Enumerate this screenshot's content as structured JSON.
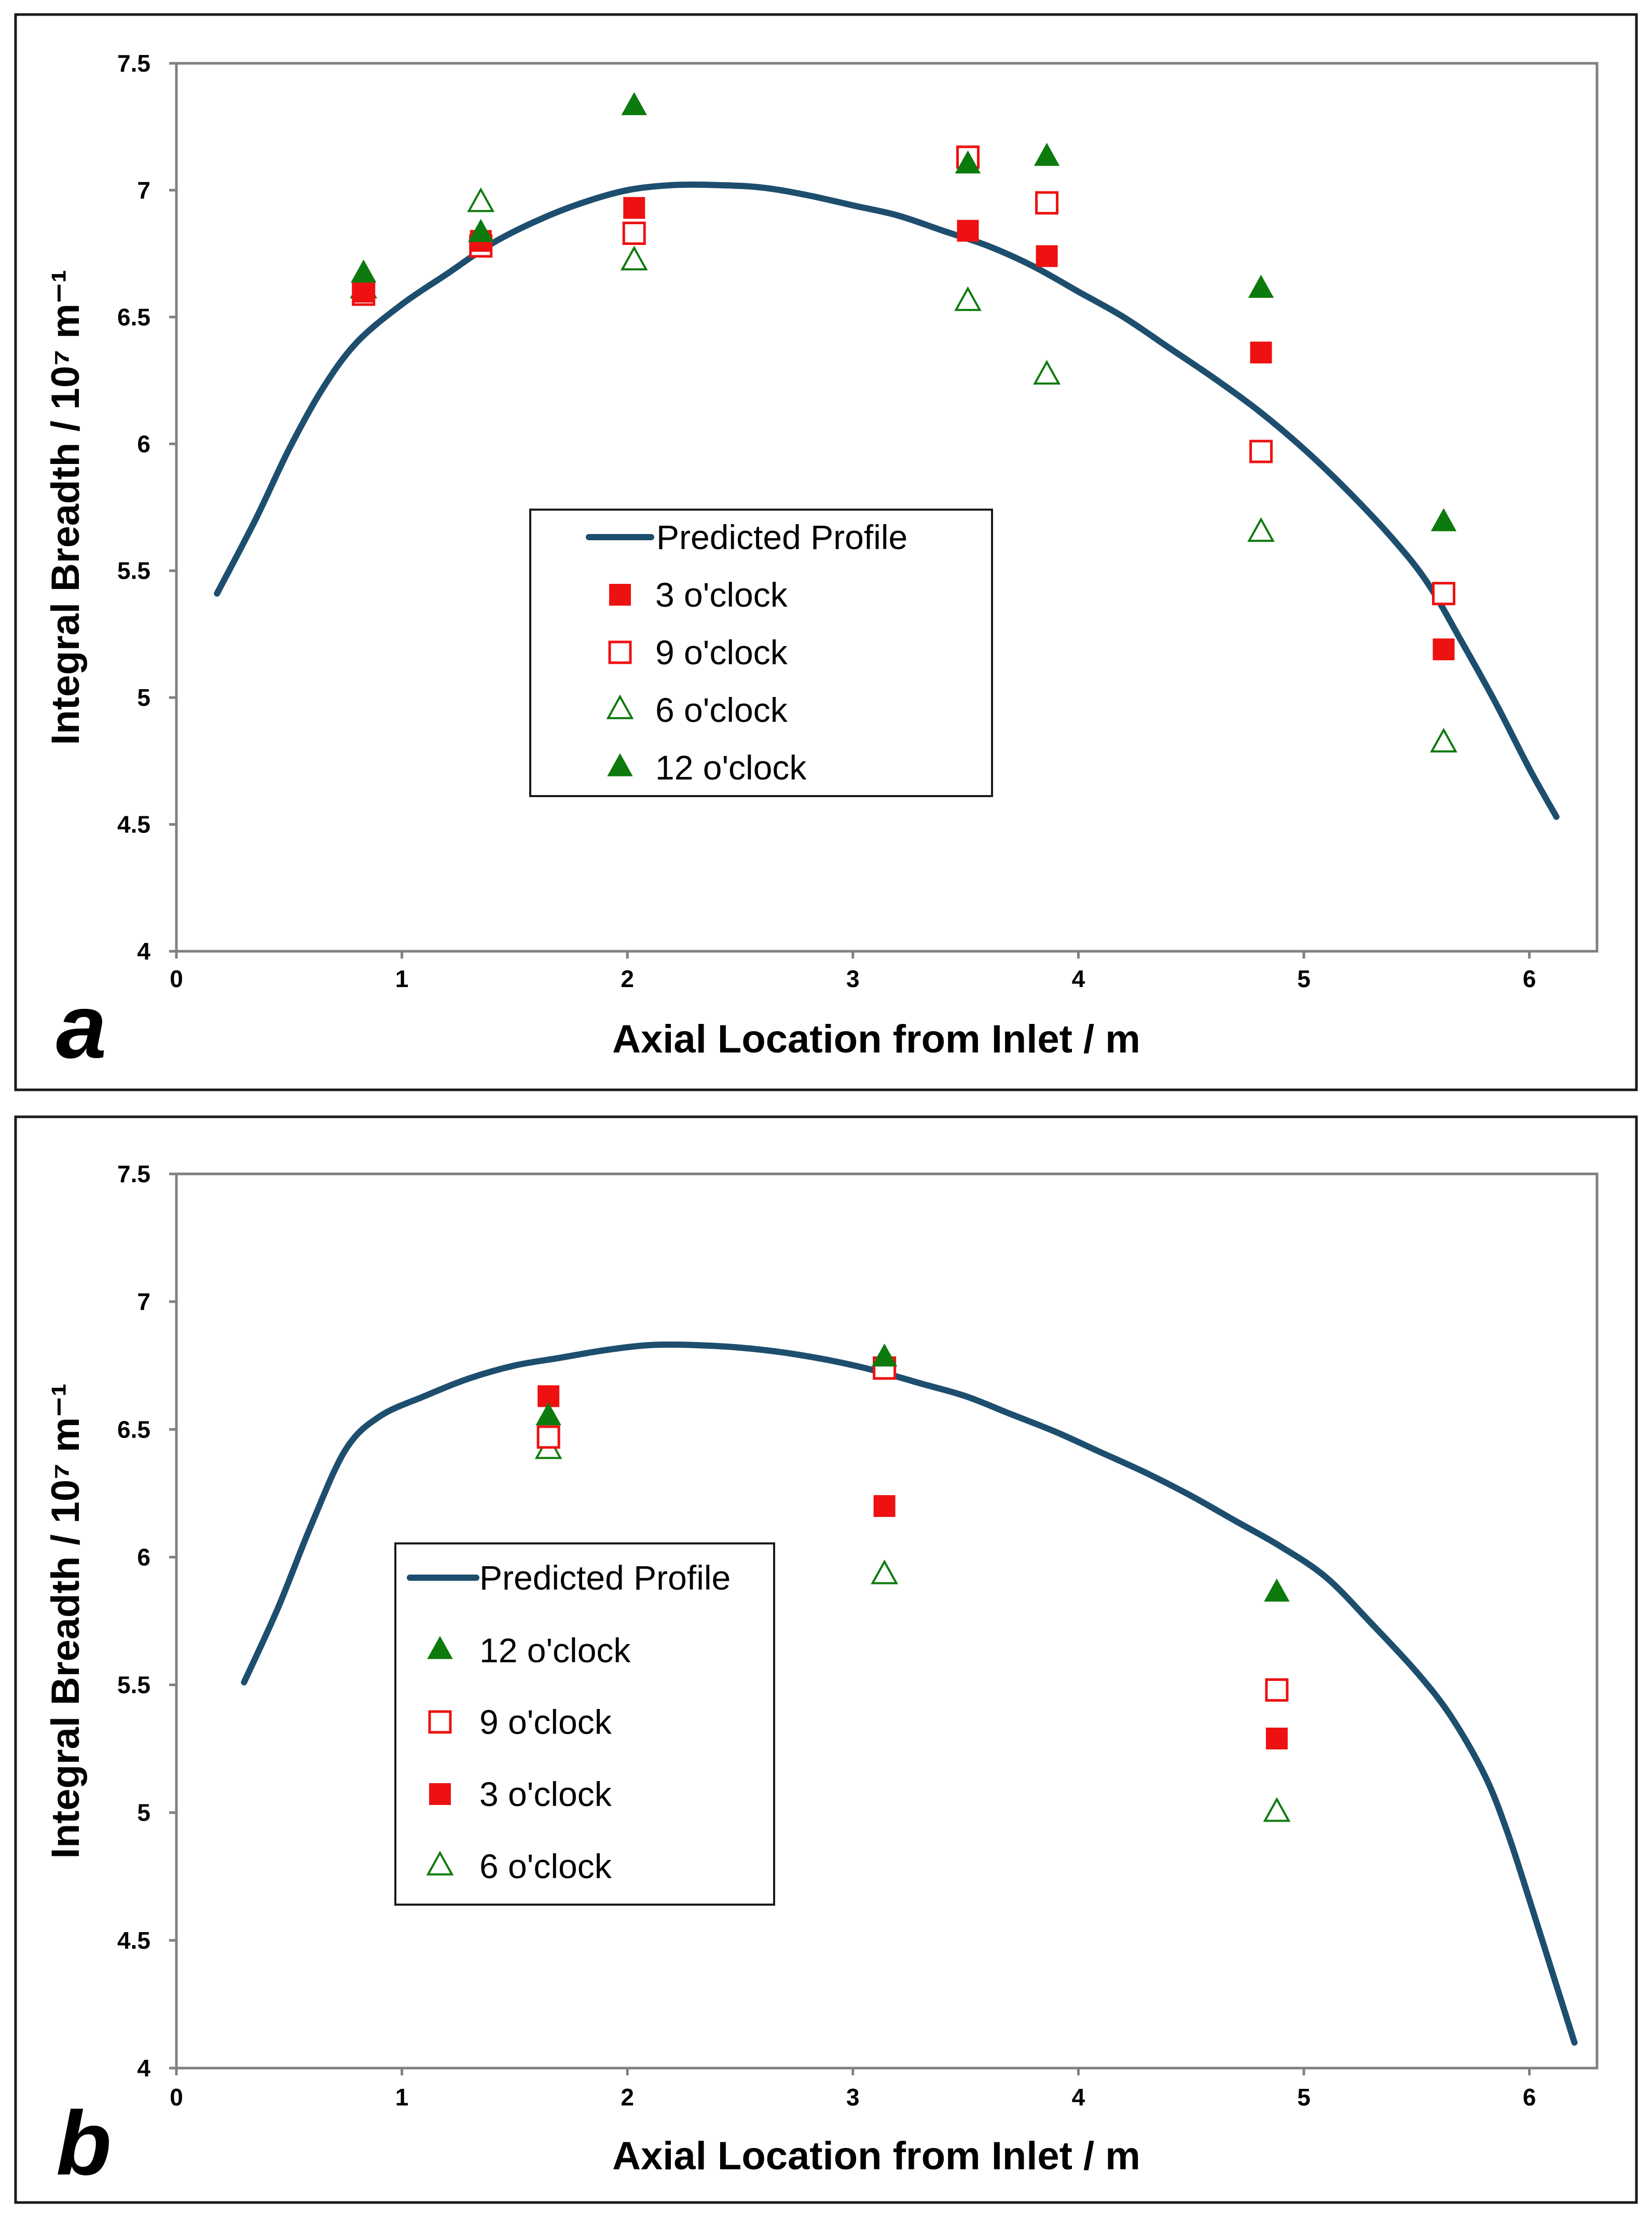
{
  "colors": {
    "curve": "#1d4e6e",
    "red": "#ee1111",
    "green": "#0d7a0d",
    "axis": "#808080",
    "frame": "#1a1a1a"
  },
  "chart_data": [
    {
      "type": "scatter",
      "panel_label": "a",
      "xlabel": "Axial Location from Inlet / m",
      "ylabel": "Integral Breadth / 10⁷ m⁻¹",
      "xlim": [
        0,
        6.3
      ],
      "ylim": [
        4,
        7.5
      ],
      "x_ticks": [
        "0",
        "1",
        "2",
        "3",
        "4",
        "5",
        "6"
      ],
      "y_ticks": [
        "4",
        "4.5",
        "5",
        "5.5",
        "6",
        "6.5",
        "7",
        "7.5"
      ],
      "grid": false,
      "legend_position": "center-left",
      "predicted_profile": {
        "name": "Predicted Profile",
        "x": [
          0.18,
          0.35,
          0.5,
          0.65,
          0.8,
          1.0,
          1.2,
          1.4,
          1.6,
          1.8,
          2.0,
          2.2,
          2.4,
          2.6,
          2.8,
          3.0,
          3.2,
          3.4,
          3.6,
          3.8,
          4.0,
          4.2,
          4.4,
          4.6,
          4.8,
          5.0,
          5.2,
          5.4,
          5.55,
          5.7,
          5.85,
          6.0,
          6.12
        ],
        "y": [
          5.41,
          5.7,
          5.98,
          6.22,
          6.4,
          6.55,
          6.67,
          6.79,
          6.88,
          6.95,
          7.0,
          7.02,
          7.02,
          7.01,
          6.98,
          6.94,
          6.9,
          6.84,
          6.78,
          6.7,
          6.6,
          6.5,
          6.38,
          6.26,
          6.13,
          5.98,
          5.81,
          5.62,
          5.45,
          5.22,
          4.98,
          4.72,
          4.53
        ]
      },
      "series": [
        {
          "name": "3 o'clock",
          "marker": "filled-square",
          "color": "red",
          "x": [
            0.83,
            1.35,
            2.03,
            3.51,
            3.86,
            4.81,
            5.62
          ],
          "y": [
            6.6,
            6.8,
            6.93,
            6.84,
            6.74,
            6.36,
            5.19
          ]
        },
        {
          "name": "9 o'clock",
          "marker": "open-square",
          "color": "red",
          "x": [
            0.83,
            1.35,
            2.03,
            3.51,
            3.86,
            4.81,
            5.62
          ],
          "y": [
            6.59,
            6.78,
            6.83,
            7.13,
            6.95,
            5.97,
            5.41
          ]
        },
        {
          "name": "6 o'clock",
          "marker": "open-triangle",
          "color": "green",
          "x": [
            0.83,
            1.35,
            2.03,
            3.51,
            3.86,
            4.81,
            5.62
          ],
          "y": [
            6.61,
            6.95,
            6.72,
            6.56,
            6.27,
            5.65,
            4.82
          ]
        },
        {
          "name": "12 o'clock",
          "marker": "filled-triangle",
          "color": "green",
          "x": [
            0.83,
            1.35,
            2.03,
            3.51,
            3.86,
            4.81,
            5.62
          ],
          "y": [
            6.67,
            6.83,
            7.33,
            7.1,
            7.13,
            6.61,
            5.69
          ]
        }
      ],
      "legend_order": [
        "Predicted Profile",
        "3 o'clock",
        "9 o'clock",
        "6 o'clock",
        "12 o'clock"
      ]
    },
    {
      "type": "scatter",
      "panel_label": "b",
      "xlabel": "Axial Location from Inlet / m",
      "ylabel": "Integral Breadth / 10⁷ m⁻¹",
      "xlim": [
        0,
        6.3
      ],
      "ylim": [
        4,
        7.5
      ],
      "x_ticks": [
        "0",
        "1",
        "2",
        "3",
        "4",
        "5",
        "6"
      ],
      "y_ticks": [
        "4",
        "4.5",
        "5",
        "5.5",
        "6",
        "6.5",
        "7",
        "7.5"
      ],
      "grid": false,
      "legend_position": "center-left",
      "predicted_profile": {
        "name": "Predicted Profile",
        "x": [
          0.3,
          0.45,
          0.6,
          0.75,
          0.9,
          1.1,
          1.3,
          1.5,
          1.7,
          1.9,
          2.1,
          2.3,
          2.5,
          2.7,
          2.9,
          3.1,
          3.3,
          3.5,
          3.7,
          3.9,
          4.1,
          4.3,
          4.5,
          4.7,
          4.9,
          5.1,
          5.3,
          5.5,
          5.65,
          5.8,
          5.9,
          6.0,
          6.1,
          6.2
        ],
        "y": [
          5.51,
          5.8,
          6.13,
          6.42,
          6.55,
          6.63,
          6.7,
          6.75,
          6.78,
          6.81,
          6.83,
          6.83,
          6.82,
          6.8,
          6.77,
          6.73,
          6.68,
          6.63,
          6.56,
          6.49,
          6.41,
          6.33,
          6.24,
          6.14,
          6.04,
          5.92,
          5.74,
          5.55,
          5.38,
          5.15,
          4.93,
          4.66,
          4.38,
          4.1
        ]
      },
      "series": [
        {
          "name": "12 o'clock",
          "marker": "filled-triangle",
          "color": "green",
          "x": [
            1.65,
            3.14,
            4.88
          ],
          "y": [
            6.55,
            6.78,
            5.86
          ]
        },
        {
          "name": "9 o'clock",
          "marker": "open-square",
          "color": "red",
          "x": [
            1.65,
            3.14,
            4.88
          ],
          "y": [
            6.47,
            6.74,
            5.48
          ]
        },
        {
          "name": "3 o'clock",
          "marker": "filled-square",
          "color": "red",
          "x": [
            1.65,
            3.14,
            4.88
          ],
          "y": [
            6.63,
            6.2,
            5.29
          ]
        },
        {
          "name": "6 o'clock",
          "marker": "open-triangle",
          "color": "green",
          "x": [
            1.65,
            3.14,
            4.88
          ],
          "y": [
            6.42,
            5.93,
            5.0
          ]
        }
      ],
      "legend_order": [
        "Predicted Profile",
        "12 o'clock",
        "9 o'clock",
        "3 o'clock",
        "6 o'clock"
      ]
    }
  ]
}
